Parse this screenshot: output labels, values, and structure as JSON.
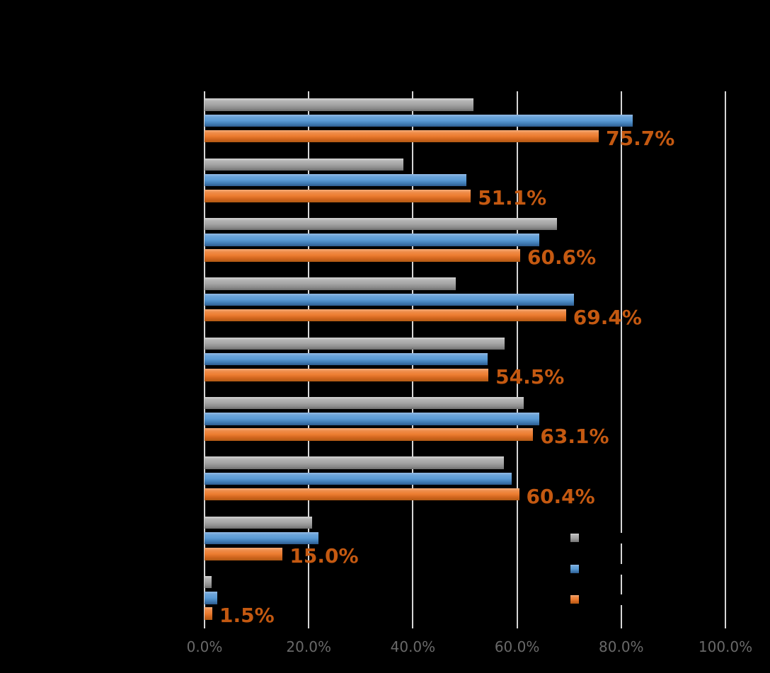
{
  "chart_data": {
    "type": "bar",
    "orientation": "horizontal",
    "title": "",
    "grid": true,
    "legend_position": "right-lower",
    "categories": [
      "",
      "",
      "",
      "",
      "",
      "",
      "",
      "",
      ""
    ],
    "series": [
      {
        "key": "gray",
        "label": "",
        "color": "#a6a6a6",
        "values": [
          51.6,
          38.2,
          67.7,
          48.2,
          57.6,
          61.3,
          57.5,
          20.6,
          1.4
        ]
      },
      {
        "key": "blue",
        "label": "",
        "color": "#5b9bd5",
        "values": [
          82.2,
          50.3,
          64.2,
          70.9,
          54.3,
          64.2,
          58.9,
          21.9,
          2.4
        ]
      },
      {
        "key": "orange",
        "label": "",
        "color": "#ed7d31",
        "values": [
          75.7,
          51.1,
          60.6,
          69.4,
          54.5,
          63.1,
          60.4,
          15.0,
          1.5
        ],
        "data_labels": [
          "75.7%",
          "51.1%",
          "60.6%",
          "69.4%",
          "54.5%",
          "63.1%",
          "60.4%",
          "15.0%",
          "1.5%"
        ]
      }
    ],
    "x_axis": {
      "min": 0,
      "max": 100,
      "tick_step": 20,
      "tick_labels": [
        "0.0%",
        "20.0%",
        "40.0%",
        "60.0%",
        "80.0%",
        "100.0%"
      ]
    },
    "legend": {
      "entries": [
        {
          "key": "gray",
          "color": "#a6a6a6",
          "label": ""
        },
        {
          "key": "blue",
          "color": "#5b9bd5",
          "label": ""
        },
        {
          "key": "orange",
          "color": "#ed7d31",
          "label": ""
        }
      ]
    }
  },
  "colors": {
    "background": "#000000",
    "gridline": "#d6d6d6",
    "axis_tick_label": "#696969",
    "data_label": "#c45911",
    "series_gray": "#a6a6a6",
    "series_blue": "#5b9bd5",
    "series_orange": "#ed7d31"
  }
}
